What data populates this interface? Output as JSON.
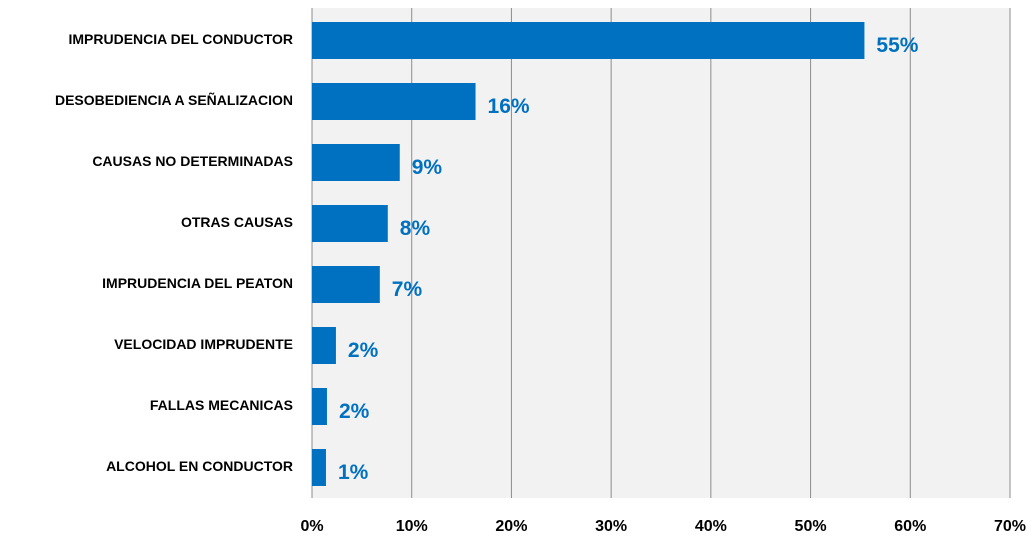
{
  "chart_data": {
    "type": "bar",
    "orientation": "horizontal",
    "categories": [
      "IMPRUDENCIA DEL CONDUCTOR",
      "DESOBEDIENCIA A SEÑALIZACION",
      "CAUSAS NO DETERMINADAS",
      "OTRAS CAUSAS",
      "IMPRUDENCIA DEL PEATON",
      "VELOCIDAD IMPRUDENTE",
      "FALLAS MECANICAS",
      "ALCOHOL EN CONDUCTOR"
    ],
    "values": [
      55.4,
      16.4,
      8.8,
      7.6,
      6.8,
      2.4,
      1.5,
      1.4
    ],
    "value_labels": [
      "55%",
      "16%",
      "9%",
      "8%",
      "7%",
      "2%",
      "2%",
      "1%"
    ],
    "color": "#0070c0",
    "xlim": [
      0,
      70
    ],
    "xticks": [
      {
        "value": 0,
        "label": "0%"
      },
      {
        "value": 10,
        "label": "10%"
      },
      {
        "value": 20,
        "label": "20%"
      },
      {
        "value": 30,
        "label": "30%"
      },
      {
        "value": 40,
        "label": "40%"
      },
      {
        "value": 50,
        "label": "50%"
      },
      {
        "value": 60,
        "label": "60%"
      },
      {
        "value": 70,
        "label": "70%"
      }
    ],
    "grid": true
  }
}
